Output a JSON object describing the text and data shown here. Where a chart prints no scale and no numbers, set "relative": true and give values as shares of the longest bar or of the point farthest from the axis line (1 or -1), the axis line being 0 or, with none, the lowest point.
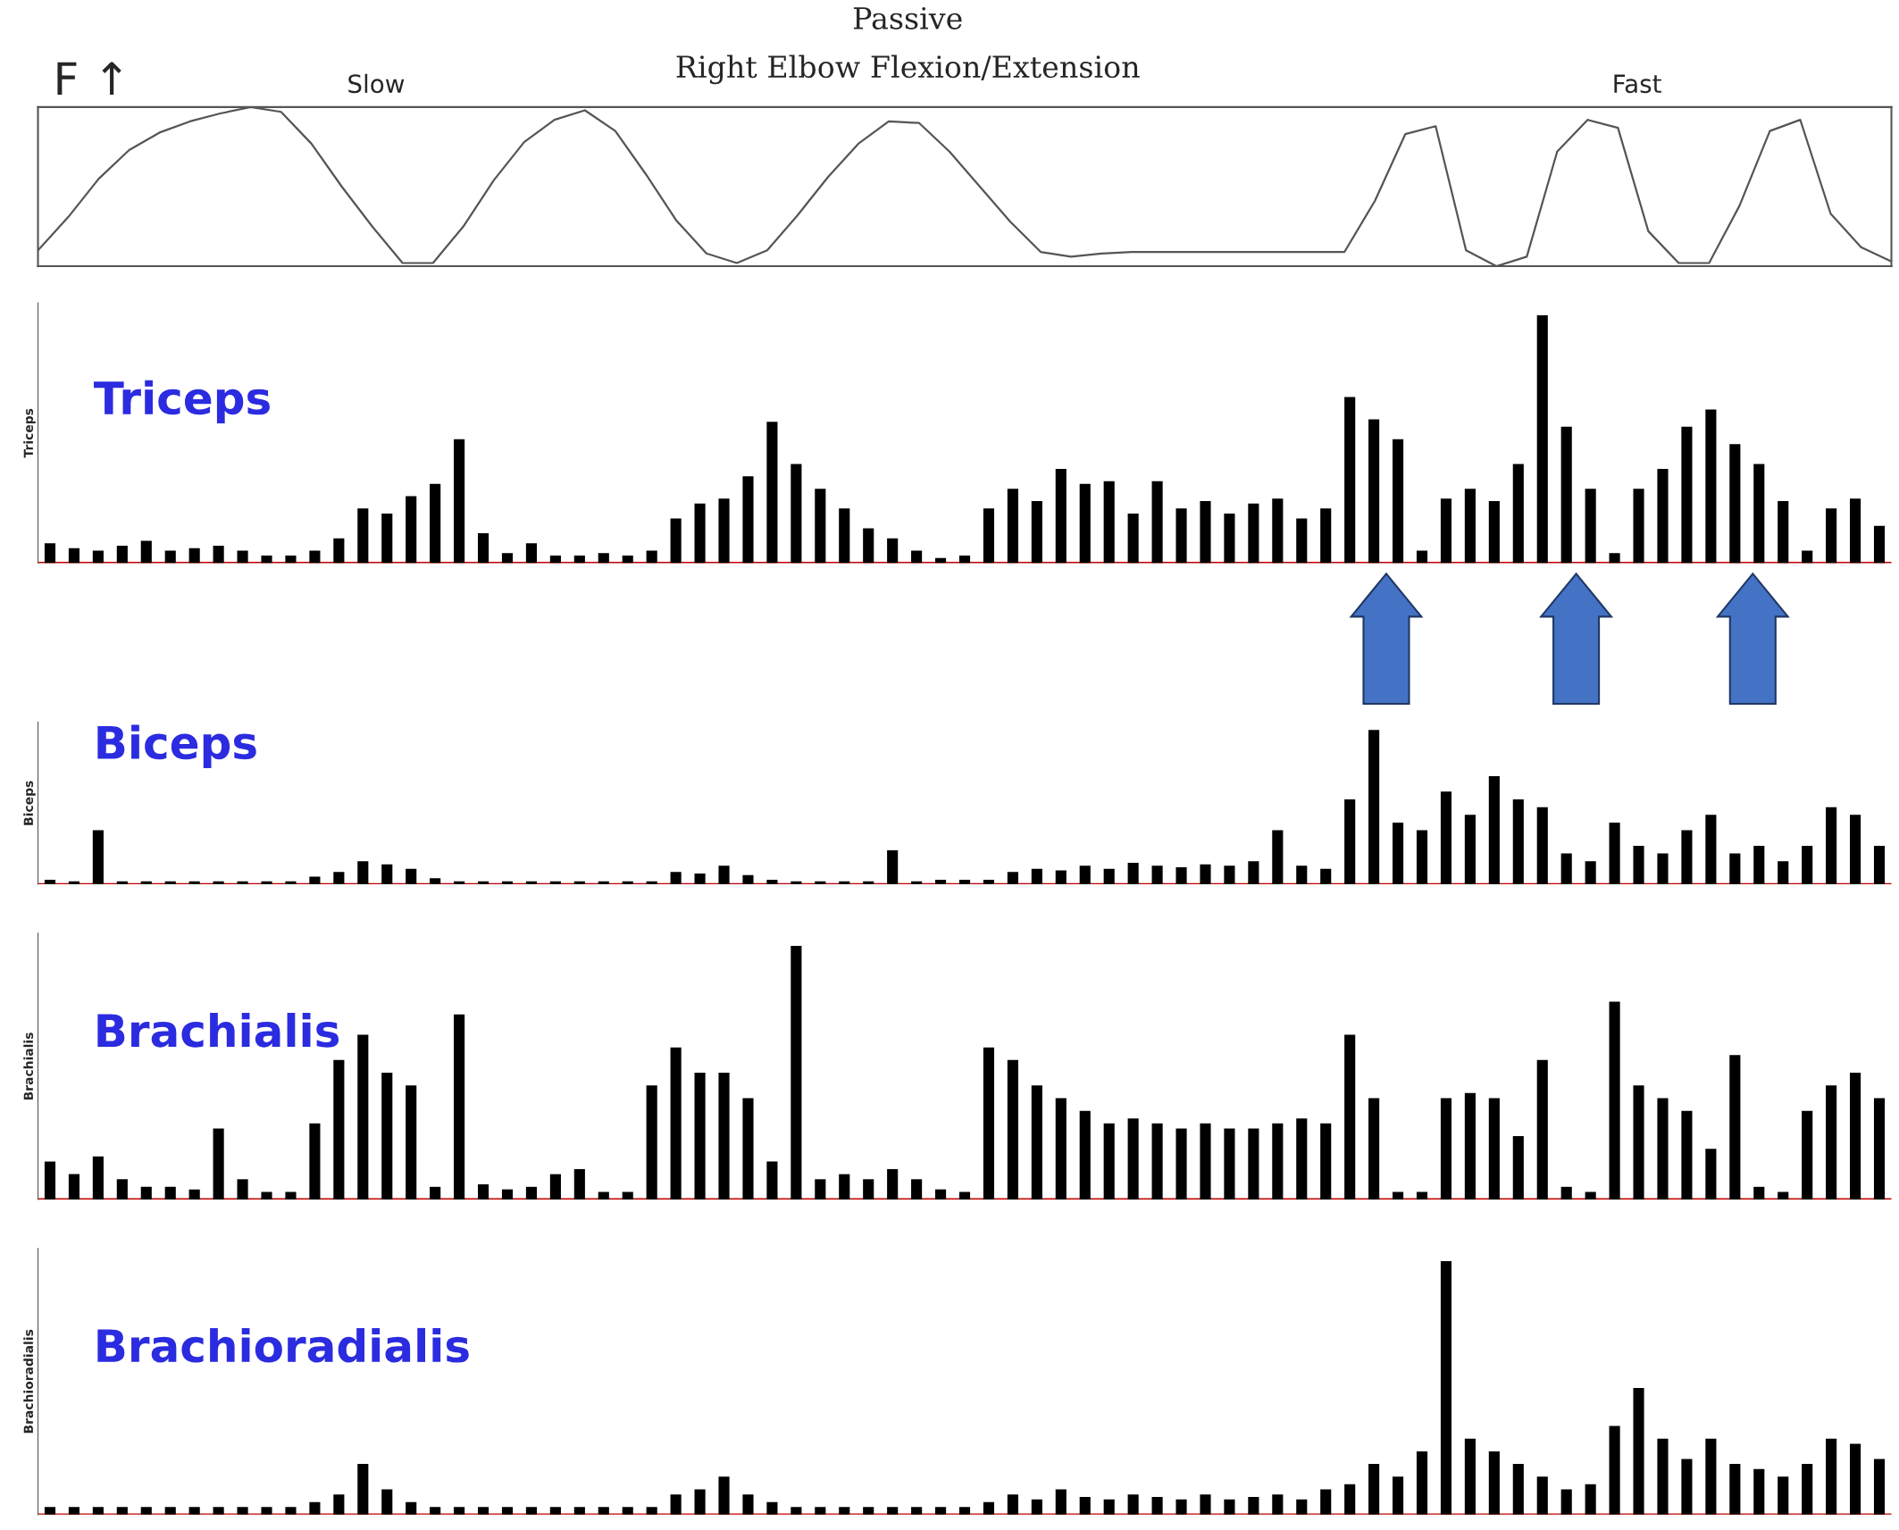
{
  "chart_data": [
    {
      "type": "line",
      "title": "Passive",
      "subtitle": "Right Elbow Flexion/Extension",
      "relative": true,
      "annotations": [
        "F ↑",
        "Slow",
        "Fast"
      ],
      "categories": [
        null,
        null,
        null,
        null,
        null,
        null,
        null,
        null,
        null,
        null,
        null,
        null,
        null,
        null,
        null,
        null,
        null,
        null,
        null,
        null,
        null,
        null,
        null,
        null,
        null,
        null,
        null,
        null,
        null,
        null,
        null,
        null,
        null,
        null,
        null,
        null,
        null,
        null,
        null,
        null,
        null,
        null,
        null,
        null,
        null,
        null,
        null,
        null,
        null,
        null,
        null,
        null,
        null,
        null,
        null,
        null,
        null,
        null,
        null,
        null,
        null,
        null
      ],
      "series": [
        {
          "color": "#555555",
          "values": [
            0.1,
            0.31,
            0.55,
            0.73,
            0.84,
            0.91,
            0.96,
            1.0,
            0.97,
            0.77,
            0.5,
            0.25,
            0.02,
            0.02,
            0.25,
            0.54,
            0.78,
            0.92,
            0.98,
            0.85,
            0.58,
            0.29,
            0.08,
            0.02,
            0.1,
            0.32,
            0.56,
            0.77,
            0.91,
            0.9,
            0.72,
            0.5,
            0.28,
            0.09,
            0.06,
            0.08,
            0.09,
            0.09,
            0.09,
            0.09,
            0.09,
            0.09,
            0.09,
            0.09,
            0.41,
            0.83,
            0.88,
            0.1,
            0.0,
            0.06,
            0.72,
            0.92,
            0.87,
            0.22,
            0.02,
            0.02,
            0.38,
            0.85,
            0.92,
            0.33,
            0.12,
            0.03
          ]
        }
      ]
    },
    {
      "type": "bar",
      "ylabel": "Triceps",
      "relative": true,
      "annotations": [
        "Triceps"
      ],
      "ref_lines": [
        {
          "axis": "y",
          "value": 0,
          "color": "#c00000"
        }
      ],
      "categories": [
        null,
        null,
        null,
        null,
        null,
        null,
        null,
        null,
        null,
        null,
        null,
        null,
        null,
        null,
        null,
        null,
        null,
        null,
        null,
        null,
        null,
        null,
        null,
        null,
        null,
        null,
        null,
        null,
        null,
        null,
        null,
        null,
        null,
        null,
        null,
        null,
        null,
        null,
        null,
        null,
        null,
        null,
        null,
        null,
        null,
        null,
        null,
        null,
        null,
        null,
        null,
        null,
        null,
        null,
        null,
        null,
        null,
        null,
        null,
        null,
        null,
        null,
        null,
        null,
        null,
        null,
        null,
        null,
        null,
        null,
        null,
        null,
        null,
        null,
        null,
        null,
        null
      ],
      "series": [
        {
          "color": "#000000",
          "values": [
            0.08,
            0.06,
            0.05,
            0.07,
            0.09,
            0.05,
            0.06,
            0.07,
            0.05,
            0.03,
            0.03,
            0.05,
            0.1,
            0.22,
            0.2,
            0.27,
            0.32,
            0.5,
            0.12,
            0.04,
            0.08,
            0.03,
            0.03,
            0.04,
            0.03,
            0.05,
            0.18,
            0.24,
            0.26,
            0.35,
            0.57,
            0.4,
            0.3,
            0.22,
            0.14,
            0.1,
            0.05,
            0.02,
            0.03,
            0.22,
            0.3,
            0.25,
            0.38,
            0.32,
            0.33,
            0.2,
            0.33,
            0.22,
            0.25,
            0.2,
            0.24,
            0.26,
            0.18,
            0.22,
            0.67,
            0.58,
            0.5,
            0.05,
            0.26,
            0.3,
            0.25,
            0.4,
            1.0,
            0.55,
            0.3,
            0.04,
            0.3,
            0.38,
            0.55,
            0.62,
            0.48,
            0.4,
            0.25,
            0.05,
            0.22,
            0.26,
            0.15
          ]
        }
      ]
    },
    {
      "type": "bar",
      "ylabel": "Biceps",
      "relative": true,
      "annotations": [
        "Biceps"
      ],
      "ref_lines": [
        {
          "axis": "y",
          "value": 0,
          "color": "#c00000"
        }
      ],
      "categories": [
        null,
        null,
        null,
        null,
        null,
        null,
        null,
        null,
        null,
        null,
        null,
        null,
        null,
        null,
        null,
        null,
        null,
        null,
        null,
        null,
        null,
        null,
        null,
        null,
        null,
        null,
        null,
        null,
        null,
        null,
        null,
        null,
        null,
        null,
        null,
        null,
        null,
        null,
        null,
        null,
        null,
        null,
        null,
        null,
        null,
        null,
        null,
        null,
        null,
        null,
        null,
        null,
        null,
        null,
        null,
        null,
        null,
        null,
        null,
        null,
        null,
        null,
        null,
        null,
        null,
        null,
        null,
        null,
        null,
        null,
        null,
        null,
        null,
        null,
        null,
        null,
        null
      ],
      "series": [
        {
          "color": "#000000",
          "values": [
            0.03,
            0.02,
            0.35,
            0.02,
            0.02,
            0.02,
            0.02,
            0.02,
            0.02,
            0.02,
            0.02,
            0.05,
            0.08,
            0.15,
            0.13,
            0.1,
            0.04,
            0.02,
            0.02,
            0.02,
            0.02,
            0.02,
            0.02,
            0.02,
            0.02,
            0.02,
            0.08,
            0.07,
            0.12,
            0.06,
            0.03,
            0.02,
            0.02,
            0.02,
            0.02,
            0.22,
            0.02,
            0.03,
            0.03,
            0.03,
            0.08,
            0.1,
            0.09,
            0.12,
            0.1,
            0.14,
            0.12,
            0.11,
            0.13,
            0.12,
            0.15,
            0.35,
            0.12,
            0.1,
            0.55,
            1.0,
            0.4,
            0.35,
            0.6,
            0.45,
            0.7,
            0.55,
            0.5,
            0.2,
            0.15,
            0.4,
            0.25,
            0.2,
            0.35,
            0.45,
            0.2,
            0.25,
            0.15,
            0.25,
            0.5,
            0.45,
            0.25
          ]
        }
      ]
    },
    {
      "type": "bar",
      "ylabel": "Brachialis",
      "relative": true,
      "annotations": [
        "Brachialis"
      ],
      "ref_lines": [
        {
          "axis": "y",
          "value": 0,
          "color": "#c00000"
        }
      ],
      "categories": [
        null,
        null,
        null,
        null,
        null,
        null,
        null,
        null,
        null,
        null,
        null,
        null,
        null,
        null,
        null,
        null,
        null,
        null,
        null,
        null,
        null,
        null,
        null,
        null,
        null,
        null,
        null,
        null,
        null,
        null,
        null,
        null,
        null,
        null,
        null,
        null,
        null,
        null,
        null,
        null,
        null,
        null,
        null,
        null,
        null,
        null,
        null,
        null,
        null,
        null,
        null,
        null,
        null,
        null,
        null,
        null,
        null,
        null,
        null,
        null,
        null,
        null,
        null,
        null,
        null,
        null,
        null,
        null,
        null,
        null,
        null,
        null,
        null,
        null,
        null,
        null,
        null
      ],
      "series": [
        {
          "color": "#000000",
          "values": [
            0.15,
            0.1,
            0.17,
            0.08,
            0.05,
            0.05,
            0.04,
            0.28,
            0.08,
            0.03,
            0.03,
            0.3,
            0.55,
            0.65,
            0.5,
            0.45,
            0.05,
            0.73,
            0.06,
            0.04,
            0.05,
            0.1,
            0.12,
            0.03,
            0.03,
            0.45,
            0.6,
            0.5,
            0.5,
            0.4,
            0.15,
            1.0,
            0.08,
            0.1,
            0.08,
            0.12,
            0.08,
            0.04,
            0.03,
            0.6,
            0.55,
            0.45,
            0.4,
            0.35,
            0.3,
            0.32,
            0.3,
            0.28,
            0.3,
            0.28,
            0.28,
            0.3,
            0.32,
            0.3,
            0.65,
            0.4,
            0.03,
            0.03,
            0.4,
            0.42,
            0.4,
            0.25,
            0.55,
            0.05,
            0.03,
            0.78,
            0.45,
            0.4,
            0.35,
            0.2,
            0.57,
            0.05,
            0.03,
            0.35,
            0.45,
            0.5,
            0.4
          ]
        }
      ]
    },
    {
      "type": "bar",
      "ylabel": "Brachioradialis",
      "relative": true,
      "annotations": [
        "Brachioradialis"
      ],
      "ref_lines": [
        {
          "axis": "y",
          "value": 0,
          "color": "#c00000"
        }
      ],
      "categories": [
        null,
        null,
        null,
        null,
        null,
        null,
        null,
        null,
        null,
        null,
        null,
        null,
        null,
        null,
        null,
        null,
        null,
        null,
        null,
        null,
        null,
        null,
        null,
        null,
        null,
        null,
        null,
        null,
        null,
        null,
        null,
        null,
        null,
        null,
        null,
        null,
        null,
        null,
        null,
        null,
        null,
        null,
        null,
        null,
        null,
        null,
        null,
        null,
        null,
        null,
        null,
        null,
        null,
        null,
        null,
        null,
        null,
        null,
        null,
        null,
        null,
        null,
        null,
        null,
        null,
        null,
        null,
        null,
        null,
        null,
        null,
        null,
        null,
        null,
        null,
        null,
        null
      ],
      "series": [
        {
          "color": "#000000",
          "values": [
            0.03,
            0.03,
            0.03,
            0.03,
            0.03,
            0.03,
            0.03,
            0.03,
            0.03,
            0.03,
            0.03,
            0.05,
            0.08,
            0.2,
            0.1,
            0.05,
            0.03,
            0.03,
            0.03,
            0.03,
            0.03,
            0.03,
            0.03,
            0.03,
            0.03,
            0.03,
            0.08,
            0.1,
            0.15,
            0.08,
            0.05,
            0.03,
            0.03,
            0.03,
            0.03,
            0.03,
            0.03,
            0.03,
            0.03,
            0.05,
            0.08,
            0.06,
            0.1,
            0.07,
            0.06,
            0.08,
            0.07,
            0.06,
            0.08,
            0.06,
            0.07,
            0.08,
            0.06,
            0.1,
            0.12,
            0.2,
            0.15,
            0.25,
            1.0,
            0.3,
            0.25,
            0.2,
            0.15,
            0.1,
            0.12,
            0.35,
            0.5,
            0.3,
            0.22,
            0.3,
            0.2,
            0.18,
            0.15,
            0.2,
            0.3,
            0.28,
            0.22
          ]
        }
      ]
    }
  ]
}
